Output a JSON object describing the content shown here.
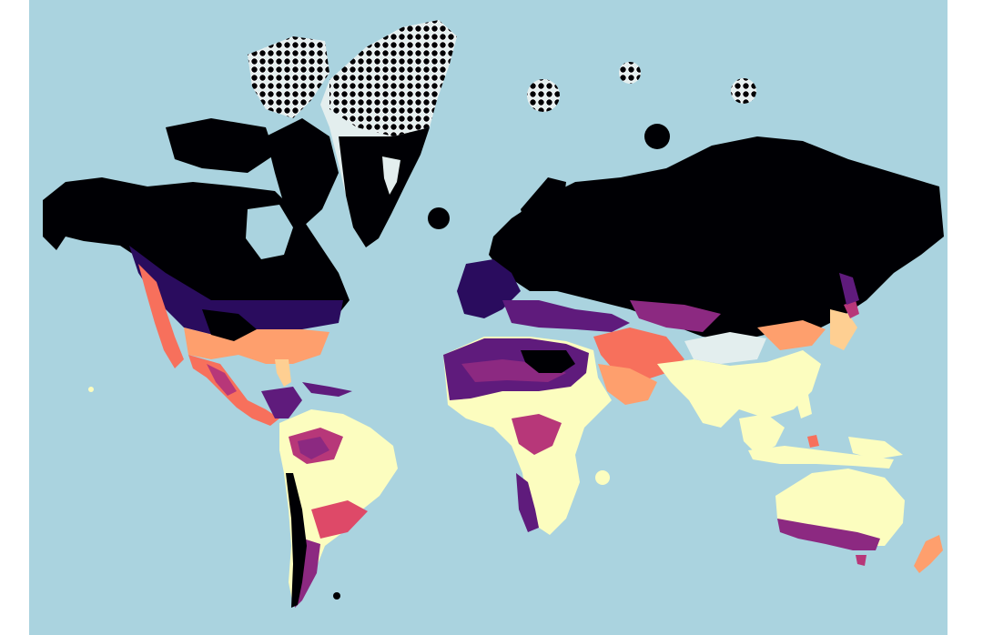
{
  "map": {
    "projection": "mercator",
    "colors": {
      "ocean": "#aad3df",
      "land": "#e3eeee",
      "levels": [
        "#000004",
        "#2a0c5e",
        "#5f1b7c",
        "#8c2981",
        "#b73779",
        "#de4968",
        "#f7705c",
        "#fe9f6d",
        "#fecf92",
        "#fcfdbf"
      ],
      "point_outline": "#ffffff"
    },
    "legend": "none",
    "regions": [
      {
        "name": "greenland-ice",
        "level": -1
      },
      {
        "name": "arctic-islands",
        "level": 0
      },
      {
        "name": "canada-alaska",
        "level": 0
      },
      {
        "name": "usa-north",
        "level": 1
      },
      {
        "name": "usa-south",
        "level": 7
      },
      {
        "name": "mexico",
        "level": 6
      },
      {
        "name": "amazon",
        "level": 4
      },
      {
        "name": "brazil-east",
        "level": 9
      },
      {
        "name": "andes",
        "level": 1
      },
      {
        "name": "sahara",
        "level": 2
      },
      {
        "name": "sahel",
        "level": 9
      },
      {
        "name": "central-africa",
        "level": 4
      },
      {
        "name": "southern-africa",
        "level": 9
      },
      {
        "name": "russia-europe-north",
        "level": 0
      },
      {
        "name": "europe-south",
        "level": 1
      },
      {
        "name": "middle-east",
        "level": 6
      },
      {
        "name": "tibet",
        "level": -1
      },
      {
        "name": "india-china-south",
        "level": 9
      },
      {
        "name": "southeast-asia",
        "level": 9
      },
      {
        "name": "australia",
        "level": 9
      },
      {
        "name": "australia-south-coast",
        "level": 3
      },
      {
        "name": "new-zealand",
        "level": 7
      }
    ]
  }
}
